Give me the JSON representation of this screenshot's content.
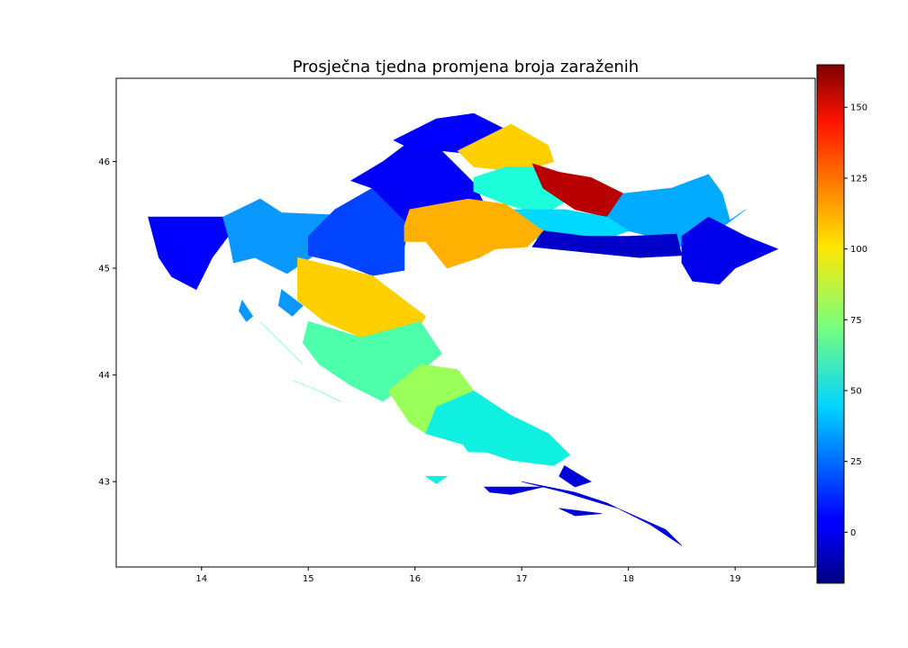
{
  "chart_data": {
    "type": "heatmap",
    "subtype": "choropleth-map",
    "title": "Prosječna tjedna promjena broja zaraženih",
    "xlim": [
      13.2,
      19.75
    ],
    "ylim": [
      42.2,
      46.78
    ],
    "xticks": [
      14,
      15,
      16,
      17,
      18,
      19
    ],
    "yticks": [
      43,
      44,
      45,
      46
    ],
    "colorbar": {
      "colormap": "jet",
      "range": [
        -18,
        165
      ],
      "ticks": [
        0,
        25,
        50,
        75,
        100,
        125,
        150
      ]
    },
    "regions": [
      {
        "value": 0,
        "color": "#0000ff",
        "poly": [
          [
            13.5,
            45.48
          ],
          [
            14.2,
            45.48
          ],
          [
            14.25,
            45.3
          ],
          [
            14.1,
            45.1
          ],
          [
            13.95,
            44.8
          ],
          [
            13.72,
            44.92
          ],
          [
            13.6,
            45.1
          ]
        ]
      },
      {
        "value": 30,
        "color": "#0a98ff",
        "poly": [
          [
            14.2,
            45.48
          ],
          [
            14.55,
            45.65
          ],
          [
            14.75,
            45.52
          ],
          [
            15.25,
            45.5
          ],
          [
            15.25,
            45.25
          ],
          [
            14.8,
            44.95
          ],
          [
            14.5,
            45.1
          ],
          [
            14.3,
            45.05
          ],
          [
            14.25,
            45.3
          ]
        ]
      },
      {
        "value": 30,
        "color": "#0a98ff",
        "poly": [
          [
            14.75,
            44.8
          ],
          [
            14.95,
            44.65
          ],
          [
            14.85,
            44.55
          ],
          [
            14.72,
            44.65
          ]
        ]
      },
      {
        "value": 30,
        "color": "#0a98ff",
        "poly": [
          [
            14.38,
            44.7
          ],
          [
            14.48,
            44.55
          ],
          [
            14.42,
            44.5
          ],
          [
            14.35,
            44.6
          ]
        ]
      },
      {
        "value": 14,
        "color": "#0044ff",
        "poly": [
          [
            15.25,
            45.55
          ],
          [
            15.6,
            45.75
          ],
          [
            15.85,
            45.5
          ],
          [
            15.95,
            45.4
          ],
          [
            15.9,
            45.2
          ],
          [
            15.9,
            44.98
          ],
          [
            15.6,
            44.93
          ],
          [
            15.3,
            45.05
          ],
          [
            15.0,
            45.12
          ],
          [
            15.0,
            45.3
          ]
        ]
      },
      {
        "value": 3,
        "color": "#0000f6",
        "poly": [
          [
            15.4,
            45.82
          ],
          [
            15.7,
            46.0
          ],
          [
            15.9,
            46.15
          ],
          [
            16.25,
            46.1
          ],
          [
            16.55,
            45.8
          ],
          [
            16.65,
            45.6
          ],
          [
            16.4,
            45.55
          ],
          [
            15.95,
            45.4
          ],
          [
            15.85,
            45.5
          ],
          [
            15.6,
            45.75
          ]
        ]
      },
      {
        "value": 0,
        "color": "#0000ff",
        "poly": [
          [
            15.8,
            46.2
          ],
          [
            16.2,
            46.4
          ],
          [
            16.55,
            46.45
          ],
          [
            16.85,
            46.3
          ],
          [
            16.7,
            46.15
          ],
          [
            16.45,
            46.08
          ],
          [
            16.25,
            46.1
          ],
          [
            15.9,
            46.15
          ]
        ]
      },
      {
        "value": 105,
        "color": "#ffd000",
        "poly": [
          [
            16.4,
            46.1
          ],
          [
            16.9,
            46.35
          ],
          [
            17.25,
            46.15
          ],
          [
            17.3,
            46.0
          ],
          [
            17.0,
            45.9
          ],
          [
            16.55,
            45.95
          ]
        ]
      },
      {
        "value": 58,
        "color": "#1cffda",
        "poly": [
          [
            16.55,
            45.85
          ],
          [
            16.55,
            45.72
          ],
          [
            16.85,
            45.6
          ],
          [
            17.2,
            45.5
          ],
          [
            17.45,
            45.65
          ],
          [
            17.3,
            45.85
          ],
          [
            17.15,
            45.95
          ],
          [
            16.85,
            45.95
          ]
        ]
      },
      {
        "value": 163,
        "color": "#b80000",
        "poly": [
          [
            17.1,
            45.98
          ],
          [
            17.35,
            45.9
          ],
          [
            17.65,
            45.85
          ],
          [
            17.95,
            45.7
          ],
          [
            17.8,
            45.48
          ],
          [
            17.5,
            45.55
          ],
          [
            17.35,
            45.65
          ],
          [
            17.2,
            45.75
          ]
        ]
      },
      {
        "value": 35,
        "color": "#00aaff",
        "poly": [
          [
            17.95,
            45.7
          ],
          [
            18.4,
            45.75
          ],
          [
            18.75,
            45.88
          ],
          [
            18.88,
            45.7
          ],
          [
            18.95,
            45.45
          ],
          [
            19.1,
            45.55
          ],
          [
            18.9,
            45.4
          ],
          [
            18.5,
            45.2
          ],
          [
            18.2,
            45.3
          ],
          [
            18.0,
            45.35
          ],
          [
            17.8,
            45.48
          ]
        ]
      },
      {
        "value": 43,
        "color": "#00d8ff",
        "poly": [
          [
            16.9,
            45.55
          ],
          [
            17.4,
            45.55
          ],
          [
            17.8,
            45.48
          ],
          [
            18.0,
            45.35
          ],
          [
            17.6,
            45.2
          ],
          [
            17.0,
            45.3
          ]
        ]
      },
      {
        "value": -10,
        "color": "#0000c8",
        "poly": [
          [
            17.1,
            45.2
          ],
          [
            17.6,
            45.15
          ],
          [
            18.1,
            45.1
          ],
          [
            18.5,
            45.12
          ],
          [
            18.45,
            45.32
          ],
          [
            18.0,
            45.3
          ],
          [
            17.6,
            45.3
          ],
          [
            17.2,
            45.35
          ]
        ]
      },
      {
        "value": 5,
        "color": "#0000ea",
        "poly": [
          [
            18.5,
            45.3
          ],
          [
            18.75,
            45.48
          ],
          [
            19.1,
            45.3
          ],
          [
            19.4,
            45.18
          ],
          [
            19.0,
            45.0
          ],
          [
            18.85,
            44.85
          ],
          [
            18.6,
            44.88
          ],
          [
            18.5,
            45.05
          ]
        ]
      },
      {
        "value": 112,
        "color": "#ffb000",
        "poly": [
          [
            15.95,
            45.55
          ],
          [
            16.5,
            45.65
          ],
          [
            16.85,
            45.6
          ],
          [
            17.2,
            45.35
          ],
          [
            17.05,
            45.2
          ],
          [
            16.75,
            45.18
          ],
          [
            16.6,
            45.1
          ],
          [
            16.3,
            45.0
          ],
          [
            16.1,
            45.25
          ],
          [
            15.9,
            45.25
          ],
          [
            15.9,
            45.4
          ]
        ]
      },
      {
        "value": 105,
        "color": "#ffd000",
        "poly": [
          [
            14.9,
            45.1
          ],
          [
            15.3,
            45.0
          ],
          [
            15.6,
            44.93
          ],
          [
            15.9,
            44.7
          ],
          [
            16.1,
            44.55
          ],
          [
            15.95,
            44.3
          ],
          [
            15.5,
            44.35
          ],
          [
            15.15,
            44.5
          ],
          [
            14.9,
            44.7
          ]
        ]
      },
      {
        "value": 65,
        "color": "#4dffaa",
        "poly": [
          [
            15.0,
            44.5
          ],
          [
            15.5,
            44.35
          ],
          [
            16.05,
            44.5
          ],
          [
            16.25,
            44.2
          ],
          [
            15.95,
            43.95
          ],
          [
            15.7,
            43.75
          ],
          [
            15.4,
            43.9
          ],
          [
            15.1,
            44.1
          ],
          [
            14.95,
            44.3
          ]
        ]
      },
      {
        "value": 65,
        "color": "#4dffaa",
        "poly": [
          [
            14.55,
            44.5
          ],
          [
            14.85,
            44.2
          ],
          [
            14.95,
            44.1
          ],
          [
            14.75,
            44.3
          ]
        ]
      },
      {
        "value": 65,
        "color": "#4dffaa",
        "poly": [
          [
            14.85,
            43.95
          ],
          [
            15.1,
            43.85
          ],
          [
            15.3,
            43.75
          ],
          [
            15.1,
            43.85
          ]
        ]
      },
      {
        "value": 85,
        "color": "#9bff5a",
        "poly": [
          [
            15.75,
            43.85
          ],
          [
            16.05,
            44.1
          ],
          [
            16.4,
            44.05
          ],
          [
            16.55,
            43.85
          ],
          [
            16.3,
            43.65
          ],
          [
            16.1,
            43.45
          ],
          [
            15.95,
            43.55
          ]
        ]
      },
      {
        "value": 55,
        "color": "#10f0e0",
        "poly": [
          [
            16.2,
            43.7
          ],
          [
            16.55,
            43.85
          ],
          [
            16.9,
            43.62
          ],
          [
            17.25,
            43.45
          ],
          [
            17.45,
            43.25
          ],
          [
            17.3,
            43.15
          ],
          [
            16.9,
            43.2
          ],
          [
            16.45,
            43.35
          ],
          [
            16.1,
            43.45
          ]
        ]
      },
      {
        "value": 55,
        "color": "#10f0e0",
        "poly": [
          [
            16.45,
            43.35
          ],
          [
            16.9,
            43.32
          ],
          [
            16.85,
            43.27
          ],
          [
            16.5,
            43.28
          ]
        ]
      },
      {
        "value": 55,
        "color": "#10f0e0",
        "poly": [
          [
            16.1,
            43.05
          ],
          [
            16.3,
            43.05
          ],
          [
            16.2,
            42.98
          ]
        ]
      },
      {
        "value": -7,
        "color": "#0000d8",
        "poly": [
          [
            17.4,
            43.15
          ],
          [
            17.65,
            43.0
          ],
          [
            17.5,
            42.95
          ],
          [
            17.35,
            43.05
          ]
        ]
      },
      {
        "value": -7,
        "color": "#0000d8",
        "poly": [
          [
            17.0,
            43.0
          ],
          [
            17.5,
            42.9
          ],
          [
            17.8,
            42.8
          ],
          [
            18.2,
            42.6
          ],
          [
            18.5,
            42.4
          ],
          [
            18.35,
            42.55
          ],
          [
            17.9,
            42.75
          ],
          [
            17.4,
            42.9
          ]
        ]
      },
      {
        "value": -7,
        "color": "#0000d8",
        "poly": [
          [
            16.65,
            42.95
          ],
          [
            17.2,
            42.95
          ],
          [
            16.9,
            42.88
          ],
          [
            16.7,
            42.9
          ]
        ]
      },
      {
        "value": -7,
        "color": "#0000d8",
        "poly": [
          [
            17.35,
            42.75
          ],
          [
            17.75,
            42.7
          ],
          [
            17.5,
            42.68
          ]
        ]
      }
    ]
  }
}
